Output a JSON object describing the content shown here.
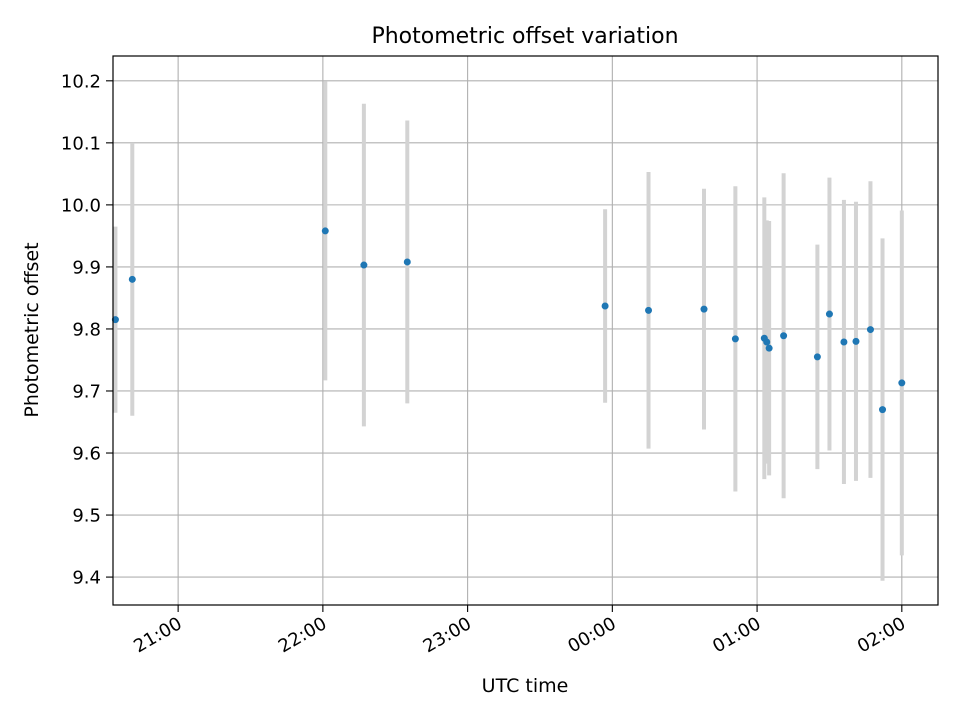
{
  "chart_data": {
    "type": "scatter",
    "title": "Photometric offset variation",
    "xlabel": "UTC time",
    "ylabel": "Photometric offset",
    "x_ticks": [
      "21:00",
      "22:00",
      "23:00",
      "00:00",
      "01:00",
      "02:00"
    ],
    "y_ticks": [
      "9.4",
      "9.5",
      "9.6",
      "9.7",
      "9.8",
      "9.9",
      "10.0",
      "10.1",
      "10.2"
    ],
    "xlim": [
      "20:33",
      "02:15"
    ],
    "ylim": [
      9.355,
      10.24
    ],
    "grid": true,
    "series": [
      {
        "marker_color": "#1f77b4",
        "errorbar_color": "#d3d3d3",
        "points": [
          {
            "x": "20:34",
            "y": 9.815,
            "yerr": 0.15
          },
          {
            "x": "20:41",
            "y": 9.88,
            "yerr": 0.22
          },
          {
            "x": "22:01",
            "y": 9.958,
            "yerr": 0.241
          },
          {
            "x": "22:17",
            "y": 9.903,
            "yerr": 0.26
          },
          {
            "x": "22:35",
            "y": 9.908,
            "yerr": 0.228
          },
          {
            "x": "23:57",
            "y": 9.837,
            "yerr": 0.156
          },
          {
            "x": "00:15",
            "y": 9.83,
            "yerr": 0.223
          },
          {
            "x": "00:38",
            "y": 9.832,
            "yerr": 0.194
          },
          {
            "x": "00:51",
            "y": 9.784,
            "yerr": 0.246
          },
          {
            "x": "01:03",
            "y": 9.785,
            "yerr": 0.227
          },
          {
            "x": "01:04",
            "y": 9.779,
            "yerr": 0.196
          },
          {
            "x": "01:05",
            "y": 9.769,
            "yerr": 0.205
          },
          {
            "x": "01:11",
            "y": 9.789,
            "yerr": 0.262
          },
          {
            "x": "01:25",
            "y": 9.755,
            "yerr": 0.181
          },
          {
            "x": "01:30",
            "y": 9.824,
            "yerr": 0.22
          },
          {
            "x": "01:36",
            "y": 9.779,
            "yerr": 0.229
          },
          {
            "x": "01:41",
            "y": 9.78,
            "yerr": 0.225
          },
          {
            "x": "01:47",
            "y": 9.799,
            "yerr": 0.239
          },
          {
            "x": "01:52",
            "y": 9.67,
            "yerr": 0.276
          },
          {
            "x": "02:00",
            "y": 9.713,
            "yerr": 0.278
          }
        ]
      }
    ]
  }
}
